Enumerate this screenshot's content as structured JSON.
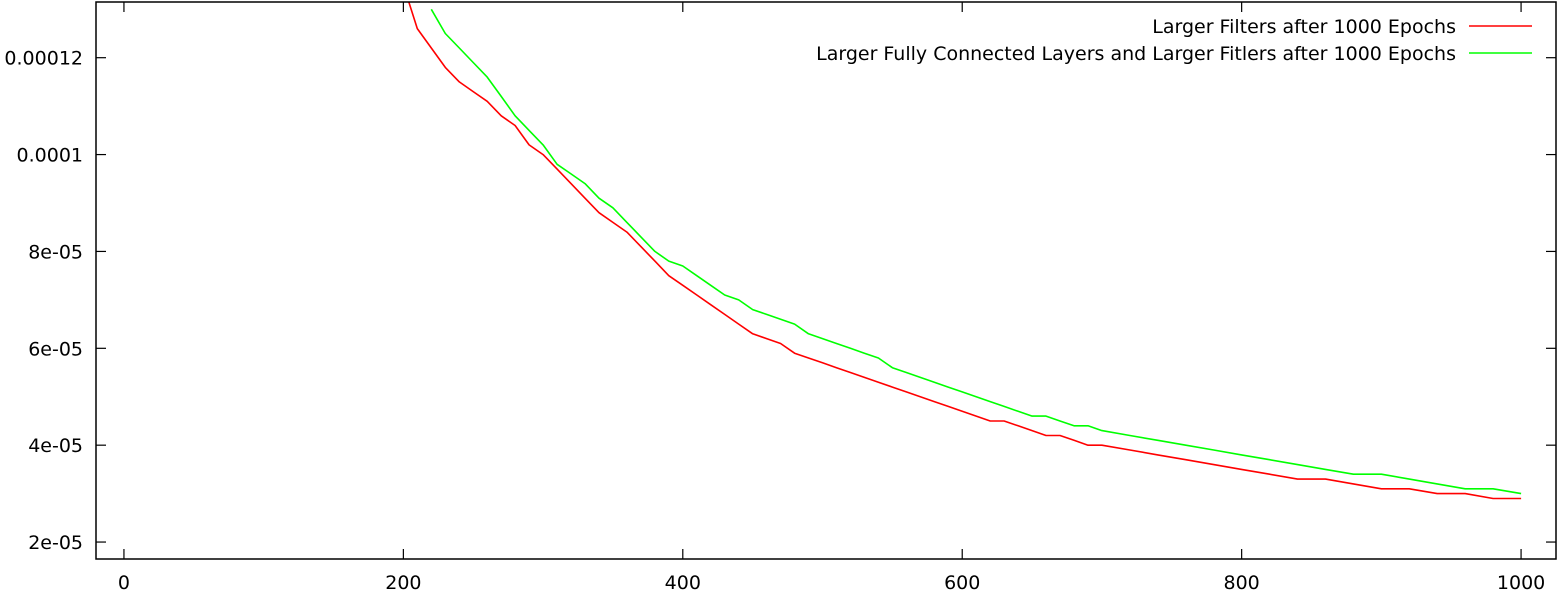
{
  "chart_data": {
    "type": "line",
    "title": "",
    "xlabel": "",
    "ylabel": "",
    "xlim": [
      -20,
      1025
    ],
    "ylim": [
      1.65e-05,
      0.0001315
    ],
    "x_ticks": [
      0,
      200,
      400,
      600,
      800,
      1000
    ],
    "x_tick_labels": [
      "0",
      "200",
      "400",
      "600",
      "800",
      "1000"
    ],
    "y_ticks": [
      2e-05,
      4e-05,
      6e-05,
      8e-05,
      0.0001,
      0.00012
    ],
    "y_tick_labels": [
      "2e-05",
      "4e-05",
      "6e-05",
      "8e-05",
      "0.0001",
      "0.00012"
    ],
    "grid": false,
    "legend_position": "top-right",
    "series": [
      {
        "name": "Larger Filters after 1000 Epochs",
        "color": "#ff0000",
        "x": [
          200,
          210,
          220,
          230,
          240,
          250,
          260,
          270,
          280,
          290,
          300,
          310,
          320,
          330,
          340,
          350,
          360,
          370,
          380,
          390,
          400,
          410,
          420,
          430,
          440,
          450,
          460,
          470,
          480,
          490,
          500,
          510,
          520,
          530,
          540,
          550,
          560,
          570,
          580,
          590,
          600,
          610,
          620,
          630,
          640,
          650,
          660,
          670,
          680,
          690,
          700,
          720,
          740,
          760,
          780,
          800,
          820,
          840,
          860,
          880,
          900,
          920,
          940,
          960,
          980,
          1000
        ],
        "y": [
          0.000135,
          0.000126,
          0.000122,
          0.000118,
          0.000115,
          0.000113,
          0.000111,
          0.000108,
          0.000106,
          0.000102,
          0.0001,
          9.7e-05,
          9.4e-05,
          9.1e-05,
          8.8e-05,
          8.6e-05,
          8.4e-05,
          8.1e-05,
          7.8e-05,
          7.5e-05,
          7.3e-05,
          7.1e-05,
          6.9e-05,
          6.7e-05,
          6.5e-05,
          6.3e-05,
          6.2e-05,
          6.1e-05,
          5.9e-05,
          5.8e-05,
          5.7e-05,
          5.6e-05,
          5.5e-05,
          5.4e-05,
          5.3e-05,
          5.2e-05,
          5.1e-05,
          5e-05,
          4.9e-05,
          4.8e-05,
          4.7e-05,
          4.6e-05,
          4.5e-05,
          4.5e-05,
          4.4e-05,
          4.3e-05,
          4.2e-05,
          4.2e-05,
          4.1e-05,
          4e-05,
          4e-05,
          3.9e-05,
          3.8e-05,
          3.7e-05,
          3.6e-05,
          3.5e-05,
          3.4e-05,
          3.3e-05,
          3.3e-05,
          3.2e-05,
          3.1e-05,
          3.1e-05,
          3e-05,
          3e-05,
          2.9e-05,
          2.9e-05
        ]
      },
      {
        "name": "Larger Fully Connected Layers and Larger Fitlers after 1000 Epochs",
        "color": "#00ff00",
        "x": [
          220,
          230,
          240,
          250,
          260,
          270,
          280,
          290,
          300,
          310,
          320,
          330,
          340,
          350,
          360,
          370,
          380,
          390,
          400,
          410,
          420,
          430,
          440,
          450,
          460,
          470,
          480,
          490,
          500,
          510,
          520,
          530,
          540,
          550,
          560,
          570,
          580,
          590,
          600,
          610,
          620,
          630,
          640,
          650,
          660,
          670,
          680,
          690,
          700,
          720,
          740,
          760,
          780,
          800,
          820,
          840,
          860,
          880,
          900,
          920,
          940,
          960,
          980,
          1000
        ],
        "y": [
          0.00013,
          0.000125,
          0.000122,
          0.000119,
          0.000116,
          0.000112,
          0.000108,
          0.000105,
          0.000102,
          9.8e-05,
          9.6e-05,
          9.4e-05,
          9.1e-05,
          8.9e-05,
          8.6e-05,
          8.3e-05,
          8e-05,
          7.8e-05,
          7.7e-05,
          7.5e-05,
          7.3e-05,
          7.1e-05,
          7e-05,
          6.8e-05,
          6.7e-05,
          6.6e-05,
          6.5e-05,
          6.3e-05,
          6.2e-05,
          6.1e-05,
          6e-05,
          5.9e-05,
          5.8e-05,
          5.6e-05,
          5.5e-05,
          5.4e-05,
          5.3e-05,
          5.2e-05,
          5.1e-05,
          5e-05,
          4.9e-05,
          4.8e-05,
          4.7e-05,
          4.6e-05,
          4.6e-05,
          4.5e-05,
          4.4e-05,
          4.4e-05,
          4.3e-05,
          4.2e-05,
          4.1e-05,
          4e-05,
          3.9e-05,
          3.8e-05,
          3.7e-05,
          3.6e-05,
          3.5e-05,
          3.4e-05,
          3.4e-05,
          3.3e-05,
          3.2e-05,
          3.1e-05,
          3.1e-05,
          3e-05
        ]
      }
    ]
  }
}
